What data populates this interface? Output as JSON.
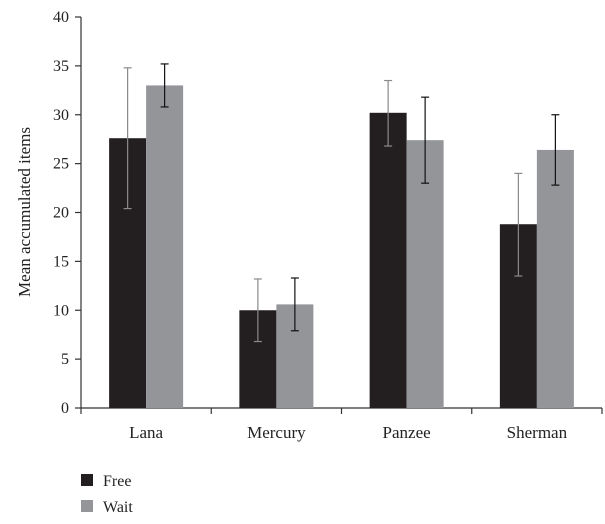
{
  "chart_data": {
    "type": "bar",
    "categories": [
      "Lana",
      "Mercury",
      "Panzee",
      "Sherman"
    ],
    "series": [
      {
        "name": "Free",
        "color": "#231f20",
        "values": [
          27.6,
          10.0,
          30.2,
          18.8
        ],
        "error_low": [
          20.4,
          6.8,
          26.8,
          13.5
        ],
        "error_high": [
          34.8,
          13.2,
          33.5,
          24.0
        ]
      },
      {
        "name": "Wait",
        "color": "#939598",
        "values": [
          33.0,
          10.6,
          27.4,
          26.4
        ],
        "error_low": [
          30.8,
          7.9,
          23.0,
          22.8
        ],
        "error_high": [
          35.2,
          13.3,
          31.8,
          30.0
        ]
      }
    ],
    "ylabel": "Mean accumulated items",
    "ylim": [
      0,
      40
    ],
    "yticks": [
      0,
      5,
      10,
      15,
      20,
      25,
      30,
      35,
      40
    ],
    "grid": false,
    "legend_position": "bottom-left"
  }
}
